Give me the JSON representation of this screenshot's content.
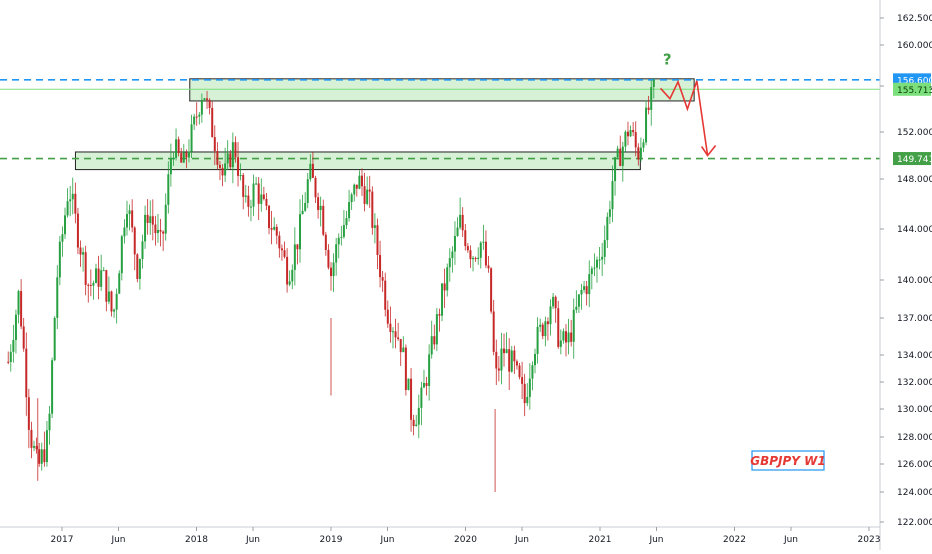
{
  "chart_data": {
    "type": "candlestick",
    "symbol_label": "GBPJPY W1",
    "annotation_mark": "?",
    "colors": {
      "up": "#26a040",
      "down": "#c62828",
      "zone_fill": "#c8ecc8",
      "zone_stroke": "#222222",
      "level_blue": "#2196f3",
      "level_green": "#43a047",
      "current_line": "#7be07b",
      "projection": "#e53935",
      "question": "#43a047",
      "label_text": "#e53935",
      "label_border": "#2196f3"
    },
    "ylim": [
      121.5,
      163.6
    ],
    "y_ticks": [
      "122.000",
      "124.000",
      "126.000",
      "128.000",
      "130.000",
      "132.000",
      "134.000",
      "137.000",
      "140.000",
      "144.000",
      "148.000",
      "152.000",
      "156.000",
      "160.000",
      "162.500"
    ],
    "x_ticks": [
      "2017",
      "Jun",
      "2018",
      "Jun",
      "2019",
      "Jun",
      "2020",
      "Jun",
      "2021",
      "Jun",
      "2022",
      "Jun",
      "2023"
    ],
    "x_tick_dates": [
      2017.0,
      2017.42,
      2018.0,
      2018.42,
      2019.0,
      2019.42,
      2020.0,
      2020.42,
      2021.0,
      2021.42,
      2022.0,
      2022.42,
      2023.0
    ],
    "xlim": [
      2016.6,
      2023.1
    ],
    "levels": [
      {
        "value": 156.6,
        "label": "156.600",
        "color": "#2196f3",
        "style": "dashed"
      },
      {
        "value": 149.741,
        "label": "149.741",
        "color": "#43a047",
        "style": "dashed"
      },
      {
        "value": 155.713,
        "label": "155.713",
        "color": "#7be07b",
        "style": "solid"
      }
    ],
    "zones": [
      {
        "x_start": 2017.95,
        "x_end": 2021.7,
        "y_low": 154.7,
        "y_high": 156.7
      },
      {
        "x_start": 2017.1,
        "x_end": 2021.3,
        "y_low": 148.8,
        "y_high": 150.3
      }
    ],
    "projection_path": [
      [
        2021.45,
        155.8
      ],
      [
        2021.52,
        154.9
      ],
      [
        2021.58,
        156.4
      ],
      [
        2021.65,
        154.0
      ],
      [
        2021.72,
        156.5
      ],
      [
        2021.8,
        150.0
      ]
    ],
    "anchors": [
      [
        2016.6,
        133.5
      ],
      [
        2016.68,
        139.0
      ],
      [
        2016.76,
        128.5
      ],
      [
        2016.82,
        125.6
      ],
      [
        2016.9,
        128.0
      ],
      [
        2016.96,
        140.0
      ],
      [
        2017.05,
        147.5
      ],
      [
        2017.12,
        143.5
      ],
      [
        2017.2,
        139.5
      ],
      [
        2017.3,
        140.5
      ],
      [
        2017.38,
        137.0
      ],
      [
        2017.48,
        146.5
      ],
      [
        2017.56,
        141.0
      ],
      [
        2017.64,
        145.5
      ],
      [
        2017.74,
        142.5
      ],
      [
        2017.82,
        151.0
      ],
      [
        2017.9,
        149.0
      ],
      [
        2017.98,
        152.5
      ],
      [
        2018.05,
        155.8
      ],
      [
        2018.12,
        152.0
      ],
      [
        2018.2,
        148.0
      ],
      [
        2018.28,
        151.0
      ],
      [
        2018.36,
        145.5
      ],
      [
        2018.44,
        147.5
      ],
      [
        2018.52,
        145.0
      ],
      [
        2018.6,
        143.5
      ],
      [
        2018.68,
        140.5
      ],
      [
        2018.76,
        143.5
      ],
      [
        2018.84,
        148.5
      ],
      [
        2018.92,
        146.0
      ],
      [
        2019.0,
        140.5
      ],
      [
        2019.06,
        143.5
      ],
      [
        2019.12,
        145.0
      ],
      [
        2019.2,
        148.0
      ],
      [
        2019.28,
        146.5
      ],
      [
        2019.34,
        142.5
      ],
      [
        2019.42,
        137.5
      ],
      [
        2019.52,
        135.0
      ],
      [
        2019.6,
        129.5
      ],
      [
        2019.66,
        130.0
      ],
      [
        2019.74,
        134.0
      ],
      [
        2019.82,
        138.5
      ],
      [
        2019.9,
        142.0
      ],
      [
        2019.96,
        144.5
      ],
      [
        2020.05,
        142.0
      ],
      [
        2020.12,
        143.0
      ],
      [
        2020.18,
        139.5
      ],
      [
        2020.22,
        132.0
      ],
      [
        2020.28,
        134.5
      ],
      [
        2020.36,
        133.0
      ],
      [
        2020.44,
        130.5
      ],
      [
        2020.5,
        134.5
      ],
      [
        2020.58,
        136.5
      ],
      [
        2020.64,
        138.5
      ],
      [
        2020.7,
        135.0
      ],
      [
        2020.76,
        135.0
      ],
      [
        2020.8,
        136.5
      ],
      [
        2020.86,
        139.0
      ],
      [
        2020.92,
        140.0
      ],
      [
        2020.98,
        141.5
      ],
      [
        2021.04,
        143.5
      ],
      [
        2021.1,
        148.5
      ],
      [
        2021.16,
        150.5
      ],
      [
        2021.22,
        152.5
      ],
      [
        2021.28,
        150.0
      ],
      [
        2021.34,
        153.0
      ],
      [
        2021.4,
        155.7
      ]
    ],
    "sample_step": 0.0192,
    "seed": 7
  }
}
